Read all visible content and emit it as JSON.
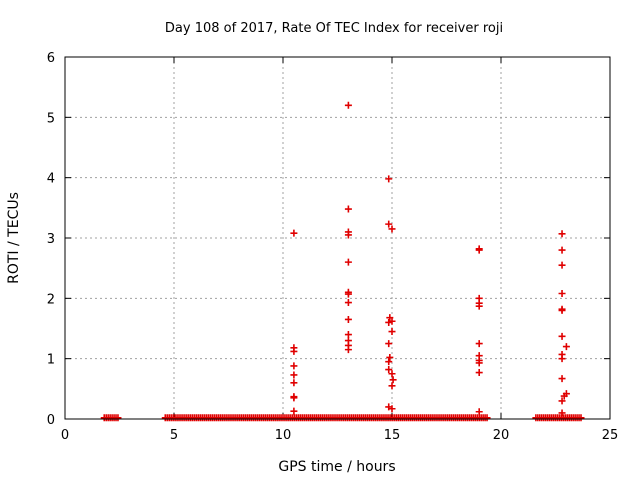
{
  "chart_data": {
    "type": "scatter",
    "title": "Day 108 of 2017, Rate Of TEC Index for receiver roji",
    "xlabel": "GPS time / hours",
    "ylabel": "ROTI / TECUs",
    "xlim": [
      0,
      25
    ],
    "ylim": [
      0,
      6
    ],
    "xticks": [
      "0",
      "5",
      "10",
      "15",
      "20",
      "25"
    ],
    "yticks": [
      "0",
      "1",
      "2",
      "3",
      "4",
      "5",
      "6"
    ],
    "grid": true,
    "marker": "plus",
    "color": "#e00000",
    "baseline_segments": [
      [
        1.8,
        2.5
      ],
      [
        4.6,
        19.4
      ],
      [
        21.6,
        23.7
      ]
    ],
    "baseline_value": 0.02,
    "points": [
      {
        "x": 10.5,
        "y": 3.08
      },
      {
        "x": 10.5,
        "y": 1.18
      },
      {
        "x": 10.5,
        "y": 1.12
      },
      {
        "x": 10.5,
        "y": 0.88
      },
      {
        "x": 10.5,
        "y": 0.73
      },
      {
        "x": 10.5,
        "y": 0.6
      },
      {
        "x": 10.5,
        "y": 0.37
      },
      {
        "x": 10.5,
        "y": 0.35
      },
      {
        "x": 10.5,
        "y": 0.13
      },
      {
        "x": 13.0,
        "y": 5.2
      },
      {
        "x": 13.0,
        "y": 3.48
      },
      {
        "x": 13.0,
        "y": 3.1
      },
      {
        "x": 13.0,
        "y": 3.05
      },
      {
        "x": 13.0,
        "y": 2.6
      },
      {
        "x": 13.0,
        "y": 2.1
      },
      {
        "x": 13.0,
        "y": 2.07
      },
      {
        "x": 13.0,
        "y": 1.93
      },
      {
        "x": 13.0,
        "y": 1.65
      },
      {
        "x": 13.0,
        "y": 1.4
      },
      {
        "x": 13.0,
        "y": 1.3
      },
      {
        "x": 13.0,
        "y": 1.22
      },
      {
        "x": 13.0,
        "y": 1.15
      },
      {
        "x": 14.85,
        "y": 3.98
      },
      {
        "x": 14.85,
        "y": 3.23
      },
      {
        "x": 15.0,
        "y": 3.15
      },
      {
        "x": 14.9,
        "y": 1.68
      },
      {
        "x": 14.85,
        "y": 1.6
      },
      {
        "x": 15.0,
        "y": 1.62
      },
      {
        "x": 15.0,
        "y": 1.45
      },
      {
        "x": 14.85,
        "y": 1.25
      },
      {
        "x": 14.9,
        "y": 1.02
      },
      {
        "x": 14.85,
        "y": 0.95
      },
      {
        "x": 14.85,
        "y": 0.82
      },
      {
        "x": 15.0,
        "y": 0.75
      },
      {
        "x": 15.05,
        "y": 0.65
      },
      {
        "x": 15.0,
        "y": 0.55
      },
      {
        "x": 14.85,
        "y": 0.2
      },
      {
        "x": 15.0,
        "y": 0.17
      },
      {
        "x": 19.0,
        "y": 2.82
      },
      {
        "x": 19.0,
        "y": 2.8
      },
      {
        "x": 19.0,
        "y": 2.0
      },
      {
        "x": 19.0,
        "y": 1.92
      },
      {
        "x": 19.0,
        "y": 1.87
      },
      {
        "x": 19.0,
        "y": 1.25
      },
      {
        "x": 19.0,
        "y": 1.05
      },
      {
        "x": 19.0,
        "y": 0.97
      },
      {
        "x": 19.0,
        "y": 0.93
      },
      {
        "x": 19.0,
        "y": 0.77
      },
      {
        "x": 19.0,
        "y": 0.12
      },
      {
        "x": 22.8,
        "y": 3.07
      },
      {
        "x": 22.8,
        "y": 2.8
      },
      {
        "x": 22.8,
        "y": 2.55
      },
      {
        "x": 22.8,
        "y": 2.08
      },
      {
        "x": 22.8,
        "y": 1.82
      },
      {
        "x": 22.8,
        "y": 1.8
      },
      {
        "x": 22.8,
        "y": 1.37
      },
      {
        "x": 23.0,
        "y": 1.2
      },
      {
        "x": 22.8,
        "y": 1.07
      },
      {
        "x": 22.8,
        "y": 1.0
      },
      {
        "x": 22.8,
        "y": 0.67
      },
      {
        "x": 23.0,
        "y": 0.42
      },
      {
        "x": 22.9,
        "y": 0.38
      },
      {
        "x": 22.8,
        "y": 0.3
      },
      {
        "x": 22.8,
        "y": 0.1
      }
    ]
  }
}
